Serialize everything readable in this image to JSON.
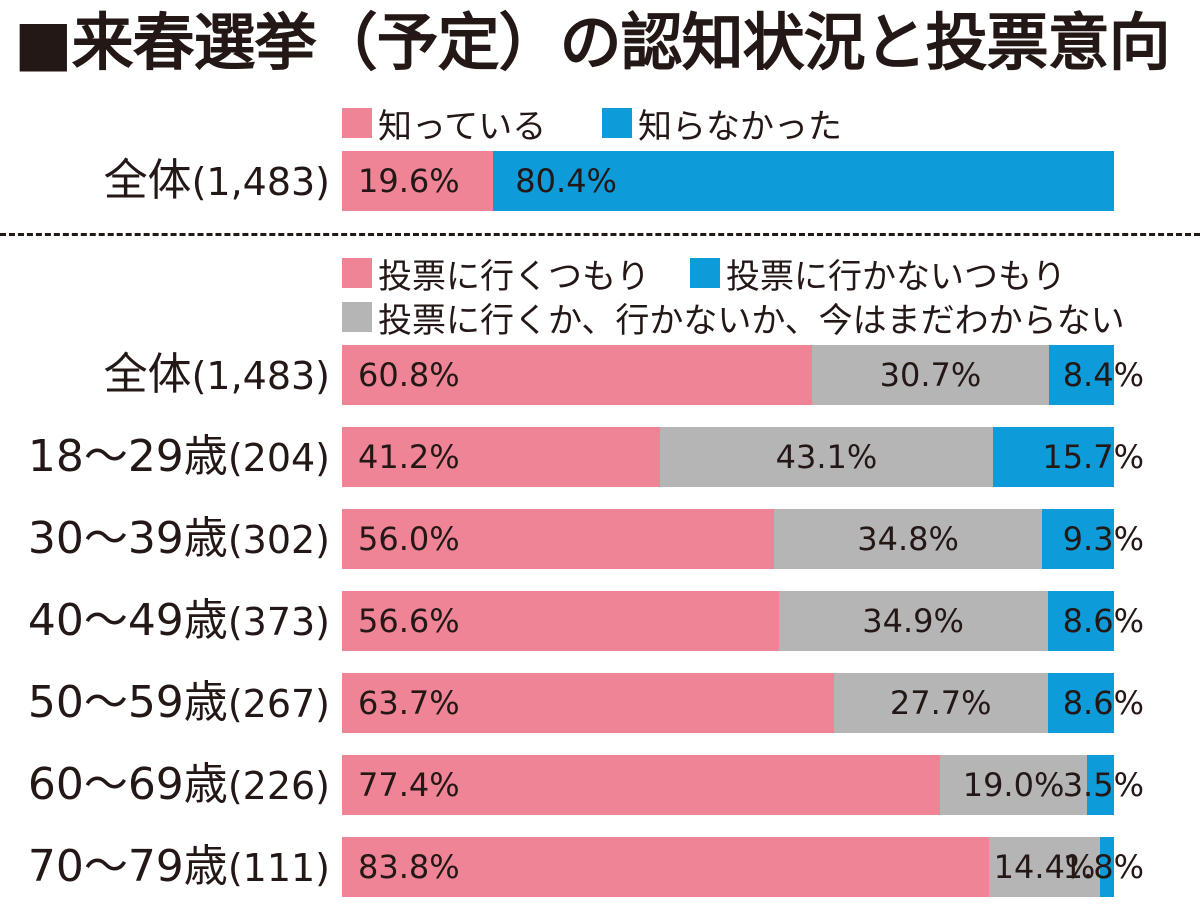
{
  "title": "■来春選挙（予定）の認知状況と投票意向",
  "colors": {
    "pink": "#ee8496",
    "blue": "#0e9bd9",
    "gray": "#b6b5b6"
  },
  "chart_data": [
    {
      "type": "bar",
      "orientation": "horizontal",
      "stacked": true,
      "units": "%",
      "xlim": [
        0,
        100
      ],
      "legend": [
        {
          "label": "知っている",
          "color": "pink"
        },
        {
          "label": "知らなかった",
          "color": "blue"
        }
      ],
      "categories": [
        {
          "label": "全体",
          "n": "(1,483)"
        }
      ],
      "rows": [
        {
          "segments": [
            {
              "value": 19.6,
              "label": "19.6%",
              "color": "pink"
            },
            {
              "value": 80.4,
              "label": "80.4%",
              "color": "blue"
            }
          ]
        }
      ]
    },
    {
      "type": "bar",
      "orientation": "horizontal",
      "stacked": true,
      "units": "%",
      "xlim": [
        0,
        100
      ],
      "legend": [
        {
          "label": "投票に行くつもり",
          "color": "pink"
        },
        {
          "label": "投票に行かないつもり",
          "color": "blue"
        },
        {
          "label": "投票に行くか、行かないか、今はまだわからない",
          "color": "gray"
        }
      ],
      "categories": [
        {
          "label": "全体",
          "n": "(1,483)"
        },
        {
          "label": "18〜29歳",
          "n": "(204)"
        },
        {
          "label": "30〜39歳",
          "n": "(302)"
        },
        {
          "label": "40〜49歳",
          "n": "(373)"
        },
        {
          "label": "50〜59歳",
          "n": "(267)"
        },
        {
          "label": "60〜69歳",
          "n": "(226)"
        },
        {
          "label": "70〜79歳",
          "n": "(111)"
        }
      ],
      "rows": [
        {
          "segments": [
            {
              "value": 60.8,
              "label": "60.8%",
              "color": "pink"
            },
            {
              "value": 30.7,
              "label": "30.7%",
              "color": "gray"
            },
            {
              "value": 8.4,
              "label": "8.4%",
              "color": "blue"
            }
          ]
        },
        {
          "segments": [
            {
              "value": 41.2,
              "label": "41.2%",
              "color": "pink"
            },
            {
              "value": 43.1,
              "label": "43.1%",
              "color": "gray"
            },
            {
              "value": 15.7,
              "label": "15.7%",
              "color": "blue"
            }
          ]
        },
        {
          "segments": [
            {
              "value": 56.0,
              "label": "56.0%",
              "color": "pink"
            },
            {
              "value": 34.8,
              "label": "34.8%",
              "color": "gray"
            },
            {
              "value": 9.3,
              "label": "9.3%",
              "color": "blue"
            }
          ]
        },
        {
          "segments": [
            {
              "value": 56.6,
              "label": "56.6%",
              "color": "pink"
            },
            {
              "value": 34.9,
              "label": "34.9%",
              "color": "gray"
            },
            {
              "value": 8.6,
              "label": "8.6%",
              "color": "blue"
            }
          ]
        },
        {
          "segments": [
            {
              "value": 63.7,
              "label": "63.7%",
              "color": "pink"
            },
            {
              "value": 27.7,
              "label": "27.7%",
              "color": "gray"
            },
            {
              "value": 8.6,
              "label": "8.6%",
              "color": "blue"
            }
          ]
        },
        {
          "segments": [
            {
              "value": 77.4,
              "label": "77.4%",
              "color": "pink"
            },
            {
              "value": 19.0,
              "label": "19.0%",
              "color": "gray"
            },
            {
              "value": 3.5,
              "label": "3.5%",
              "color": "blue"
            }
          ]
        },
        {
          "segments": [
            {
              "value": 83.8,
              "label": "83.8%",
              "color": "pink"
            },
            {
              "value": 14.4,
              "label": "14.4%",
              "color": "gray"
            },
            {
              "value": 1.8,
              "label": "1.8%",
              "color": "blue"
            }
          ]
        }
      ]
    }
  ]
}
